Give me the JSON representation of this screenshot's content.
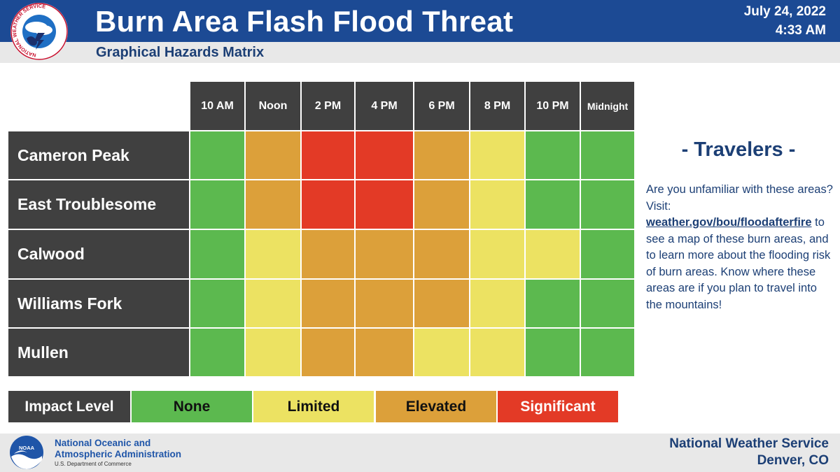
{
  "header": {
    "title": "Burn Area Flash Flood Threat",
    "subtitle": "Graphical Hazards Matrix",
    "date": "July 24, 2022",
    "time": "4:33 AM",
    "nws_logo_text": "NATIONAL WEATHER SERVICE"
  },
  "colors": {
    "header_blue": "#1c4a94",
    "text_navy": "#1c3f75",
    "cell_dark": "#404040",
    "None": "#5cb94f",
    "Limited": "#ece262",
    "Elevated": "#dca03a",
    "Significant": "#e33a26"
  },
  "chart_data": {
    "type": "heatmap",
    "title": "Burn Area Flash Flood Threat",
    "subtitle": "Graphical Hazards Matrix",
    "columns": [
      "10 AM",
      "Noon",
      "2 PM",
      "4 PM",
      "6 PM",
      "8 PM",
      "10 PM",
      "Midnight"
    ],
    "rows": [
      "Cameron Peak",
      "East Troublesome",
      "Calwood",
      "Williams Fork",
      "Mullen"
    ],
    "values": [
      [
        "None",
        "Elevated",
        "Significant",
        "Significant",
        "Elevated",
        "Limited",
        "None",
        "None"
      ],
      [
        "None",
        "Elevated",
        "Significant",
        "Significant",
        "Elevated",
        "Limited",
        "None",
        "None"
      ],
      [
        "None",
        "Limited",
        "Elevated",
        "Elevated",
        "Elevated",
        "Limited",
        "Limited",
        "None"
      ],
      [
        "None",
        "Limited",
        "Elevated",
        "Elevated",
        "Elevated",
        "Limited",
        "None",
        "None"
      ],
      [
        "None",
        "Limited",
        "Elevated",
        "Elevated",
        "Limited",
        "Limited",
        "None",
        "None"
      ]
    ],
    "legend_title": "Impact Level",
    "legend": [
      "None",
      "Limited",
      "Elevated",
      "Significant"
    ]
  },
  "legend_colors": {
    "None": {
      "bg": "#5cb94f",
      "fg": "#111111"
    },
    "Limited": {
      "bg": "#ece262",
      "fg": "#111111"
    },
    "Elevated": {
      "bg": "#dca03a",
      "fg": "#111111"
    },
    "Significant": {
      "bg": "#e33a26",
      "fg": "#ffffff"
    }
  },
  "travelers": {
    "heading": "- Travelers -",
    "text_before": "Are you unfamiliar with these areas? Visit: ",
    "link": "weather.gov/bou/floodafterfire",
    "text_after": " to see a map of these burn areas, and to learn more about the flooding risk of burn areas. Know where these areas are if you plan to travel into the mountains!"
  },
  "footer": {
    "noaa_logo_text": "NOAA",
    "noaa_line1": "National Oceanic and",
    "noaa_line2": "Atmospheric Administration",
    "noaa_dept": "U.S. Department of Commerce",
    "nws_name": "National Weather Service",
    "nws_location": "Denver, CO"
  }
}
